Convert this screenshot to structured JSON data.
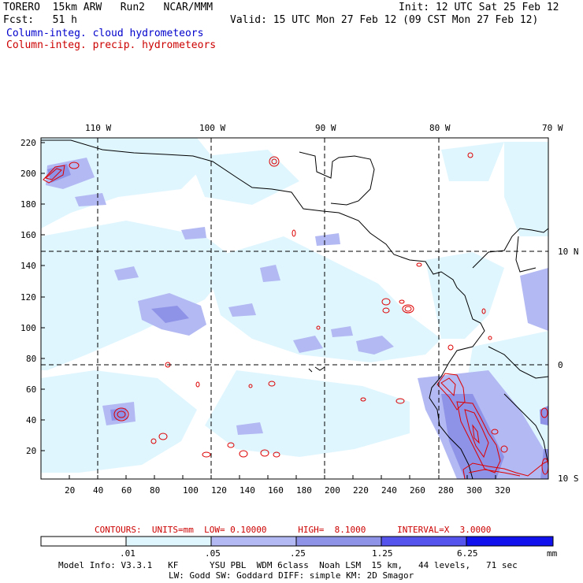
{
  "header": {
    "model": "TORERO  15km ARW   Run2   NCAR/MMM",
    "init": "Init: 12 UTC Sat 25 Feb 12",
    "fcst": "Fcst:   51 h",
    "valid": "Valid: 15 UTC Mon 27 Feb 12 (09 CST Mon 27 Feb 12)",
    "legend_cloud": "Column-integ. cloud hydrometeors",
    "legend_precip": "Column-integ. precip. hydrometeors"
  },
  "map": {
    "top_lon_labels": [
      "110 W",
      "100 W",
      "90 W",
      "80 W",
      "70 W"
    ],
    "right_lat_labels": [
      "10 N",
      "0",
      "10 S"
    ],
    "x_ticks": [
      "20",
      "40",
      "60",
      "80",
      "100",
      "120",
      "140",
      "160",
      "180",
      "200",
      "220",
      "240",
      "260",
      "280",
      "300",
      "320"
    ],
    "y_ticks": [
      "220",
      "200",
      "180",
      "160",
      "140",
      "120",
      "100",
      "80",
      "60",
      "40",
      "20"
    ],
    "colors": {
      "light": "#dff6ff",
      "medium": "#b3b9f2",
      "dark": "#8f93e8",
      "contour": "#dd0000",
      "coast": "#000000"
    }
  },
  "contour_info": "CONTOURS:  UNITS=mm  LOW= 0.10000      HIGH=  8.1000      INTERVAL=X  3.0000",
  "colorbar": {
    "labels": [
      ".01",
      ".05",
      ".25",
      "1.25",
      "6.25"
    ],
    "unit": "mm",
    "colors": [
      "#ffffff",
      "#dff6ff",
      "#b3b9f2",
      "#8f93e8",
      "#6666ee",
      "#3333ee",
      "#0000dd"
    ]
  },
  "footer": {
    "line1": "Model Info: V3.3.1   KF      YSU PBL  WDM 6class  Noah LSM  15 km,   44 levels,   71 sec",
    "line2": "LW: Godd SW: Goddard DIFF: simple KM: 2D Smagor"
  }
}
